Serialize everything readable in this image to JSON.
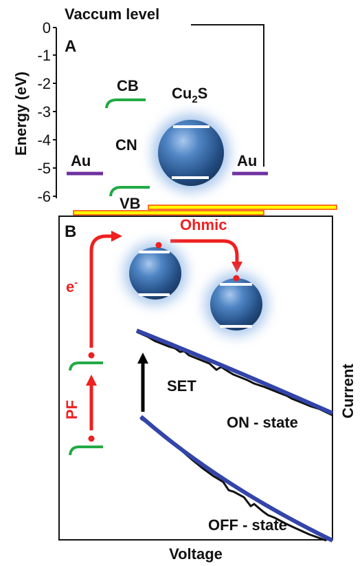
{
  "panel_a": {
    "letter": "A",
    "vacuum_label": "Vaccum level",
    "y_axis_label": "Energy (eV)",
    "y_ticks": [
      "0",
      "-1",
      "-2",
      "-3",
      "-4",
      "-5",
      "-6"
    ],
    "au_left": "Au",
    "au_right": "Au",
    "cb_label": "CB",
    "cn_label": "CN",
    "vb_label": "VB",
    "cu2s_main": "Cu",
    "cu2s_sub": "2",
    "cu2s_tail": "S"
  },
  "panel_b": {
    "letter": "B",
    "ohmic_label": "Ohmic",
    "electron_label": "e",
    "electron_sup": "-",
    "pf_label": "PF",
    "set_label": "SET",
    "on_state_label": "ON - state",
    "off_state_label": "OFF - state",
    "x_axis_label": "Voltage",
    "y_axis_label": "Current"
  },
  "colors": {
    "red_arrow": "#ee2020",
    "green_band": "#22aa44",
    "purple_au": "#7030a0",
    "fit_line": "#3344aa",
    "sphere": "#3f72b0",
    "separator_fill": "#ffff00",
    "separator_edge": "#ff4400"
  }
}
